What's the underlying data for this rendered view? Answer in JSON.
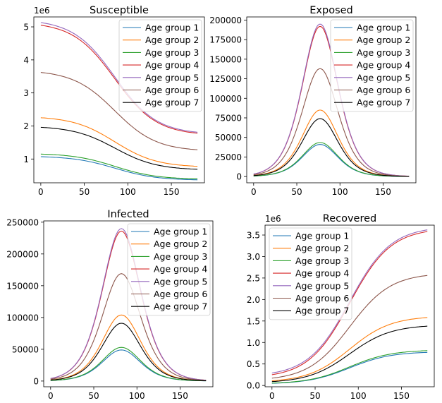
{
  "chart_data": [
    {
      "type": "line",
      "title": "Susceptible",
      "offset_label": "1e6",
      "xlim": [
        -8,
        188
      ],
      "ylim": [
        0.28,
        5.3
      ],
      "xticks": [
        0,
        50,
        100,
        150
      ],
      "yticks": [
        1,
        2,
        3,
        4,
        5
      ],
      "ytick_labels": [
        "1",
        "2",
        "3",
        "4",
        "5"
      ],
      "legend_position": "upper-right",
      "curve": "decreasing",
      "series": [
        {
          "name": "Age group 1",
          "color": "#1f77b4",
          "start": 1.07,
          "end": 0.37
        },
        {
          "name": "Age group 2",
          "color": "#ff7f0e",
          "start": 2.25,
          "end": 0.78
        },
        {
          "name": "Age group 3",
          "color": "#2ca02c",
          "start": 1.15,
          "end": 0.4
        },
        {
          "name": "Age group 4",
          "color": "#d62728",
          "start": 5.05,
          "end": 1.78
        },
        {
          "name": "Age group 5",
          "color": "#9467bd",
          "start": 5.13,
          "end": 1.81
        },
        {
          "name": "Age group 6",
          "color": "#8c564b",
          "start": 3.62,
          "end": 1.28
        },
        {
          "name": "Age group 7",
          "color": "#000000",
          "start": 1.96,
          "end": 0.69
        }
      ]
    },
    {
      "type": "line",
      "title": "Exposed",
      "offset_label": "",
      "xlim": [
        -8,
        188
      ],
      "ylim": [
        -8000,
        204000
      ],
      "xticks": [
        0,
        50,
        100,
        150
      ],
      "yticks": [
        0,
        25000,
        50000,
        75000,
        100000,
        125000,
        150000,
        175000,
        200000
      ],
      "ytick_labels": [
        "0",
        "25000",
        "50000",
        "75000",
        "100000",
        "125000",
        "150000",
        "175000",
        "200000"
      ],
      "legend_position": "upper-right",
      "curve": "peak",
      "peak_x": 77,
      "peak_width": 28,
      "series": [
        {
          "name": "Age group 1",
          "color": "#1f77b4",
          "peak": 41000
        },
        {
          "name": "Age group 2",
          "color": "#ff7f0e",
          "peak": 85000
        },
        {
          "name": "Age group 3",
          "color": "#2ca02c",
          "peak": 43500
        },
        {
          "name": "Age group 4",
          "color": "#d62728",
          "peak": 192000
        },
        {
          "name": "Age group 5",
          "color": "#9467bd",
          "peak": 195000
        },
        {
          "name": "Age group 6",
          "color": "#8c564b",
          "peak": 138000
        },
        {
          "name": "Age group 7",
          "color": "#000000",
          "peak": 74000
        }
      ]
    },
    {
      "type": "line",
      "title": "Infected",
      "offset_label": "",
      "xlim": [
        -8,
        188
      ],
      "ylim": [
        -9000,
        252000
      ],
      "xticks": [
        0,
        50,
        100,
        150
      ],
      "yticks": [
        0,
        50000,
        100000,
        150000,
        200000,
        250000
      ],
      "ytick_labels": [
        "0",
        "50000",
        "100000",
        "150000",
        "200000",
        "250000"
      ],
      "legend_position": "upper-right",
      "curve": "peak",
      "peak_x": 82,
      "peak_width": 30,
      "series": [
        {
          "name": "Age group 1",
          "color": "#1f77b4",
          "peak": 49000
        },
        {
          "name": "Age group 2",
          "color": "#ff7f0e",
          "peak": 104000
        },
        {
          "name": "Age group 3",
          "color": "#2ca02c",
          "peak": 53000
        },
        {
          "name": "Age group 4",
          "color": "#d62728",
          "peak": 236000
        },
        {
          "name": "Age group 5",
          "color": "#9467bd",
          "peak": 240000
        },
        {
          "name": "Age group 6",
          "color": "#8c564b",
          "peak": 169000
        },
        {
          "name": "Age group 7",
          "color": "#000000",
          "peak": 91000
        }
      ]
    },
    {
      "type": "line",
      "title": "Recovered",
      "offset_label": "1e6",
      "xlim": [
        -8,
        188
      ],
      "ylim": [
        -0.03,
        3.73
      ],
      "xticks": [
        0,
        50,
        100,
        150
      ],
      "yticks": [
        0.0,
        0.5,
        1.0,
        1.5,
        2.0,
        2.5,
        3.0,
        3.5
      ],
      "ytick_labels": [
        "0.0",
        "0.5",
        "1.0",
        "1.5",
        "2.0",
        "2.5",
        "3.0",
        "3.5"
      ],
      "legend_position": "upper-left",
      "curve": "increasing",
      "series": [
        {
          "name": "Age group 1",
          "color": "#1f77b4",
          "start": 0.05,
          "end": 0.77
        },
        {
          "name": "Age group 2",
          "color": "#ff7f0e",
          "start": 0.11,
          "end": 1.58
        },
        {
          "name": "Age group 3",
          "color": "#2ca02c",
          "start": 0.055,
          "end": 0.81
        },
        {
          "name": "Age group 4",
          "color": "#d62728",
          "start": 0.25,
          "end": 3.58
        },
        {
          "name": "Age group 5",
          "color": "#9467bd",
          "start": 0.29,
          "end": 3.62
        },
        {
          "name": "Age group 6",
          "color": "#8c564b",
          "start": 0.17,
          "end": 2.56
        },
        {
          "name": "Age group 7",
          "color": "#000000",
          "start": 0.09,
          "end": 1.38
        }
      ]
    }
  ]
}
